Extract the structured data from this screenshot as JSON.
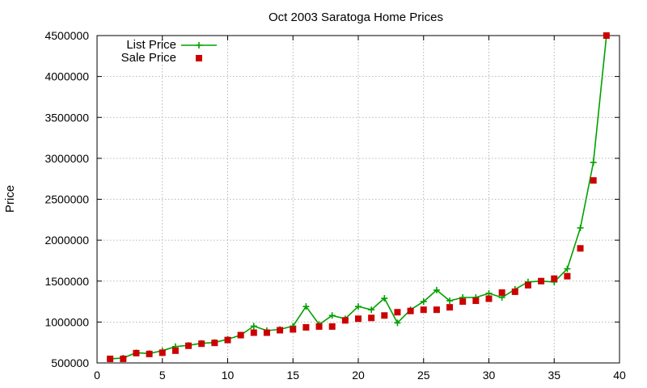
{
  "chart_data": {
    "type": "line",
    "title": "Oct 2003 Saratoga Home Prices",
    "xlabel": "",
    "ylabel": "Price",
    "xlim": [
      0,
      40
    ],
    "ylim": [
      500000,
      4500000
    ],
    "xticks": [
      0,
      5,
      10,
      15,
      20,
      25,
      30,
      35,
      40
    ],
    "yticks": [
      500000,
      1000000,
      1500000,
      2000000,
      2500000,
      3000000,
      3500000,
      4000000,
      4500000
    ],
    "grid": true,
    "legend_position": "top-left",
    "x": [
      1,
      2,
      3,
      4,
      5,
      6,
      7,
      8,
      9,
      10,
      11,
      12,
      13,
      14,
      15,
      16,
      17,
      18,
      19,
      20,
      21,
      22,
      23,
      24,
      25,
      26,
      27,
      28,
      29,
      30,
      31,
      32,
      33,
      34,
      35,
      36,
      37,
      38,
      39
    ],
    "series": [
      {
        "name": "List Price",
        "style": "line-plus",
        "color": "#00a000",
        "values": [
          550000,
          560000,
          625000,
          615000,
          650000,
          700000,
          715000,
          740000,
          750000,
          790000,
          840000,
          950000,
          895000,
          910000,
          950000,
          1190000,
          970000,
          1080000,
          1040000,
          1190000,
          1150000,
          1290000,
          990000,
          1150000,
          1250000,
          1390000,
          1260000,
          1300000,
          1300000,
          1350000,
          1300000,
          1400000,
          1490000,
          1500000,
          1490000,
          1650000,
          2150000,
          2950000,
          4500000
        ]
      },
      {
        "name": "Sale Price",
        "style": "square-markers",
        "color": "#cc0000",
        "values": [
          550000,
          550000,
          620000,
          610000,
          625000,
          650000,
          710000,
          735000,
          745000,
          780000,
          840000,
          870000,
          870000,
          900000,
          910000,
          935000,
          945000,
          945000,
          1020000,
          1040000,
          1050000,
          1080000,
          1120000,
          1135000,
          1150000,
          1150000,
          1180000,
          1250000,
          1260000,
          1285000,
          1360000,
          1370000,
          1450000,
          1500000,
          1530000,
          1560000,
          1900000,
          2730000,
          4500000
        ]
      }
    ]
  }
}
